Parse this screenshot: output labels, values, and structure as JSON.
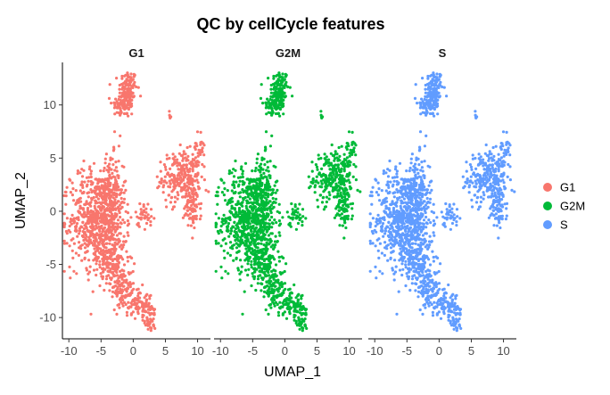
{
  "chart_data": {
    "type": "scatter",
    "title": "QC by cellCycle features",
    "xlabel": "UMAP_1",
    "ylabel": "UMAP_2",
    "xlim": [
      -11,
      12
    ],
    "ylim": [
      -12,
      14
    ],
    "x_ticks": [
      -10,
      -5,
      0,
      5,
      10
    ],
    "y_ticks": [
      -10,
      -5,
      0,
      5,
      10
    ],
    "x_tick_labels": [
      "-10",
      "-5",
      "0",
      "5",
      "10"
    ],
    "y_tick_labels": [
      "-10",
      "-5",
      "0",
      "5",
      "10"
    ],
    "grid": false,
    "legend_position": "right",
    "facets": [
      "G1",
      "G2M",
      "S"
    ],
    "series": [
      {
        "name": "G1",
        "color": "#F8766D"
      },
      {
        "name": "G2M",
        "color": "#00BA38"
      },
      {
        "name": "S",
        "color": "#619CFF"
      }
    ],
    "clusters": [
      {
        "cx": -0.8,
        "cy": 11.5,
        "sx": 0.7,
        "sy": 0.9,
        "n": 120
      },
      {
        "cx": -1.5,
        "cy": 10.0,
        "sx": 0.9,
        "sy": 0.6,
        "n": 80
      },
      {
        "cx": 7.5,
        "cy": 3.2,
        "sx": 1.5,
        "sy": 1.2,
        "n": 260
      },
      {
        "cx": 9.2,
        "cy": 0.5,
        "sx": 0.7,
        "sy": 1.1,
        "n": 90
      },
      {
        "cx": 10.2,
        "cy": 5.8,
        "sx": 0.4,
        "sy": 0.8,
        "n": 25
      },
      {
        "cx": -5.5,
        "cy": -0.8,
        "sx": 2.1,
        "sy": 2.3,
        "n": 700
      },
      {
        "cx": -3.2,
        "cy": 2.0,
        "sx": 0.9,
        "sy": 1.6,
        "n": 140
      },
      {
        "cx": -3.0,
        "cy": -4.8,
        "sx": 1.1,
        "sy": 1.5,
        "n": 160
      },
      {
        "cx": -1.5,
        "cy": -7.3,
        "sx": 0.9,
        "sy": 0.9,
        "n": 90
      },
      {
        "cx": 0.8,
        "cy": -8.6,
        "sx": 1.0,
        "sy": 0.7,
        "n": 80
      },
      {
        "cx": 2.5,
        "cy": -10.0,
        "sx": 0.5,
        "sy": 0.7,
        "n": 50
      },
      {
        "cx": 1.7,
        "cy": -0.3,
        "sx": 0.7,
        "sy": 0.6,
        "n": 35
      },
      {
        "cx": 5.7,
        "cy": 9.0,
        "sx": 0.2,
        "sy": 0.3,
        "n": 5
      },
      {
        "cx": -8.5,
        "cy": 3.7,
        "sx": 0.2,
        "sy": 0.2,
        "n": 3
      }
    ]
  }
}
